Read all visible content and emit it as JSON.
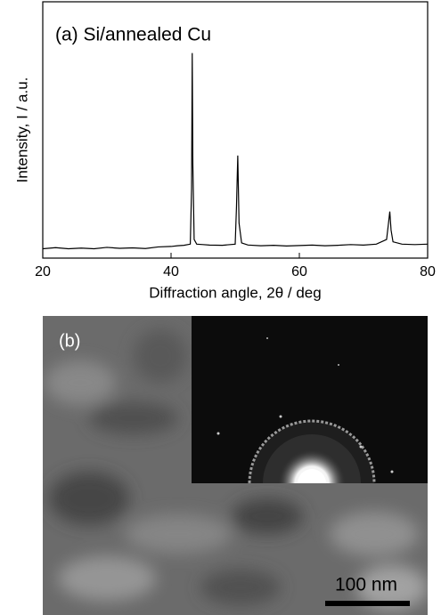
{
  "chart_data": {
    "type": "line",
    "annotation": "(a) Si/annealed Cu",
    "xlabel": "Diffraction angle, 2θ / deg",
    "ylabel": "Intensity, I / a.u.",
    "x": [
      20,
      22,
      24,
      26,
      28,
      30,
      32,
      34,
      36,
      38,
      40,
      41,
      42,
      43,
      43.2,
      43.3,
      43.4,
      43.6,
      44,
      45,
      46,
      48,
      50,
      50.2,
      50.4,
      50.6,
      51,
      52,
      54,
      56,
      58,
      60,
      62,
      64,
      66,
      68,
      70,
      72,
      73.6,
      73.9,
      74.1,
      74.3,
      74.6,
      76,
      78,
      80
    ],
    "values": [
      4,
      4.5,
      4,
      4.3,
      4,
      4.6,
      4.2,
      4.4,
      4.1,
      4.8,
      5,
      5.3,
      5.5,
      6,
      30,
      88,
      40,
      8,
      6,
      5.8,
      5.6,
      5.5,
      6,
      22,
      44,
      15,
      6.5,
      5.6,
      5.3,
      5.5,
      5.2,
      5.4,
      5.6,
      5.3,
      5.5,
      5.8,
      5.6,
      6,
      8,
      15,
      20,
      12,
      7,
      6,
      5.8,
      6
    ],
    "color": "#000000",
    "xlim": [
      20,
      80
    ],
    "xticks": [
      20,
      40,
      60,
      80
    ],
    "ylim": [
      0,
      110
    ]
  },
  "image_b": {
    "label": "(b)",
    "scale_bar": "100 nm"
  }
}
